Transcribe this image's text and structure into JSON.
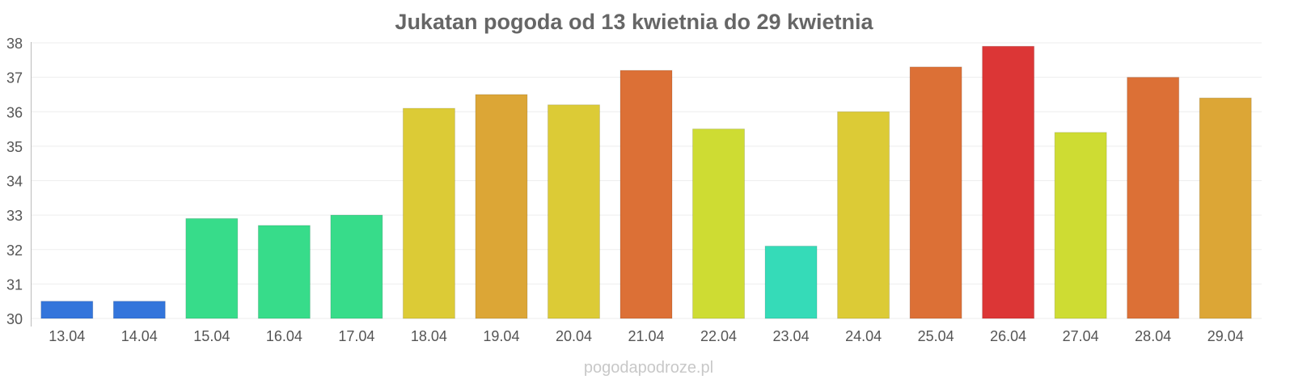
{
  "chart_data": {
    "type": "bar",
    "title": "Jukatan pogoda od 13 kwietnia do 29 kwietnia",
    "xlabel": "",
    "ylabel": "",
    "ylim": [
      30,
      38
    ],
    "yticks": [
      "30",
      "31",
      "32",
      "33",
      "34",
      "35",
      "36",
      "37",
      "38"
    ],
    "grid": true,
    "categories": [
      "13.04",
      "14.04",
      "15.04",
      "16.04",
      "17.04",
      "18.04",
      "19.04",
      "20.04",
      "21.04",
      "22.04",
      "23.04",
      "24.04",
      "25.04",
      "26.04",
      "27.04",
      "28.04",
      "29.04"
    ],
    "values": [
      30.5,
      30.5,
      32.9,
      32.7,
      33.0,
      36.1,
      36.5,
      36.2,
      37.2,
      35.5,
      32.1,
      36.0,
      37.3,
      37.9,
      35.4,
      37.0,
      36.4
    ],
    "colors": [
      "#3375db",
      "#3375db",
      "#37dc8a",
      "#37dc8a",
      "#37dc8a",
      "#dccb36",
      "#dca636",
      "#dccb36",
      "#dc7036",
      "#cedc33",
      "#35dbb8",
      "#dccb36",
      "#dc7036",
      "#dc3636",
      "#cedc33",
      "#dc7036",
      "#dca636"
    ],
    "watermark": "pogodapodroze.pl"
  }
}
